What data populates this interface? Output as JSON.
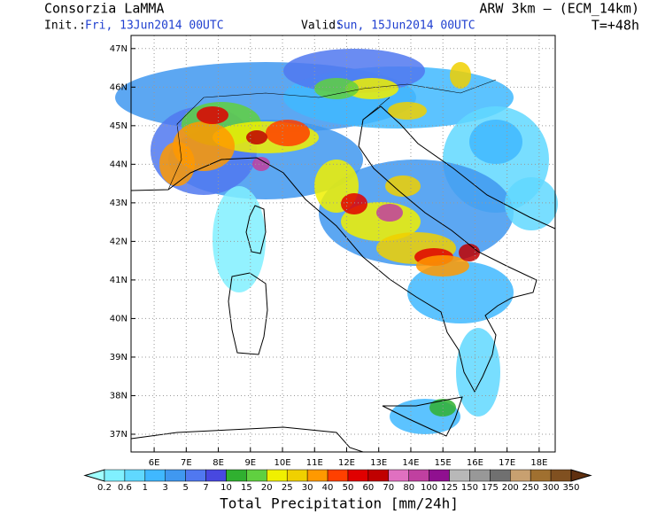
{
  "header": {
    "org": "Consorzia LaMMA",
    "model": "ARW 3km – (ECM_14km)",
    "init_label": "Init.:",
    "init": "Fri, 13Jun2014 00UTC",
    "valid_label": "Valid:",
    "valid": "Sun, 15Jun2014 00UTC",
    "lead": "T=+48h"
  },
  "map": {
    "lon_range": [
      5.28,
      18.5
    ],
    "lat_range": [
      36.54,
      47.34
    ],
    "lon_ticks": [
      {
        "value": 6,
        "label": "6E"
      },
      {
        "value": 7,
        "label": "7E"
      },
      {
        "value": 8,
        "label": "8E"
      },
      {
        "value": 9,
        "label": "9E"
      },
      {
        "value": 10,
        "label": "10E"
      },
      {
        "value": 11,
        "label": "11E"
      },
      {
        "value": 12,
        "label": "12E"
      },
      {
        "value": 13,
        "label": "13E"
      },
      {
        "value": 14,
        "label": "14E"
      },
      {
        "value": 15,
        "label": "15E"
      },
      {
        "value": 16,
        "label": "16E"
      },
      {
        "value": 17,
        "label": "17E"
      },
      {
        "value": 18,
        "label": "18E"
      }
    ],
    "lat_ticks": [
      {
        "value": 47,
        "label": "47N"
      },
      {
        "value": 46,
        "label": "46N"
      },
      {
        "value": 45,
        "label": "45N"
      },
      {
        "value": 44,
        "label": "44N"
      },
      {
        "value": 43,
        "label": "43N"
      },
      {
        "value": 42,
        "label": "42N"
      },
      {
        "value": 41,
        "label": "41N"
      },
      {
        "value": 40,
        "label": "40N"
      },
      {
        "value": 39,
        "label": "39N"
      },
      {
        "value": 38,
        "label": "38N"
      },
      {
        "value": 37,
        "label": "37N"
      }
    ]
  },
  "colorbar": {
    "title": "Total Precipitation [mm/24h]",
    "levels": [
      0.2,
      0.6,
      1,
      3,
      5,
      7,
      10,
      15,
      20,
      25,
      30,
      40,
      50,
      60,
      70,
      80,
      100,
      125,
      150,
      175,
      200,
      250,
      300,
      350
    ],
    "colors": [
      "#a0ffff",
      "#80f0ff",
      "#60d8ff",
      "#40b8ff",
      "#4098f0",
      "#5078f0",
      "#4848e0",
      "#30b030",
      "#60d040",
      "#f0f000",
      "#f0d000",
      "#ff9900",
      "#ff4000",
      "#e00000",
      "#c00000",
      "#e070c0",
      "#c040a0",
      "#901090",
      "#b8b8b8",
      "#989898",
      "#707070",
      "#c8a070",
      "#a07030",
      "#805020",
      "#603010"
    ]
  }
}
